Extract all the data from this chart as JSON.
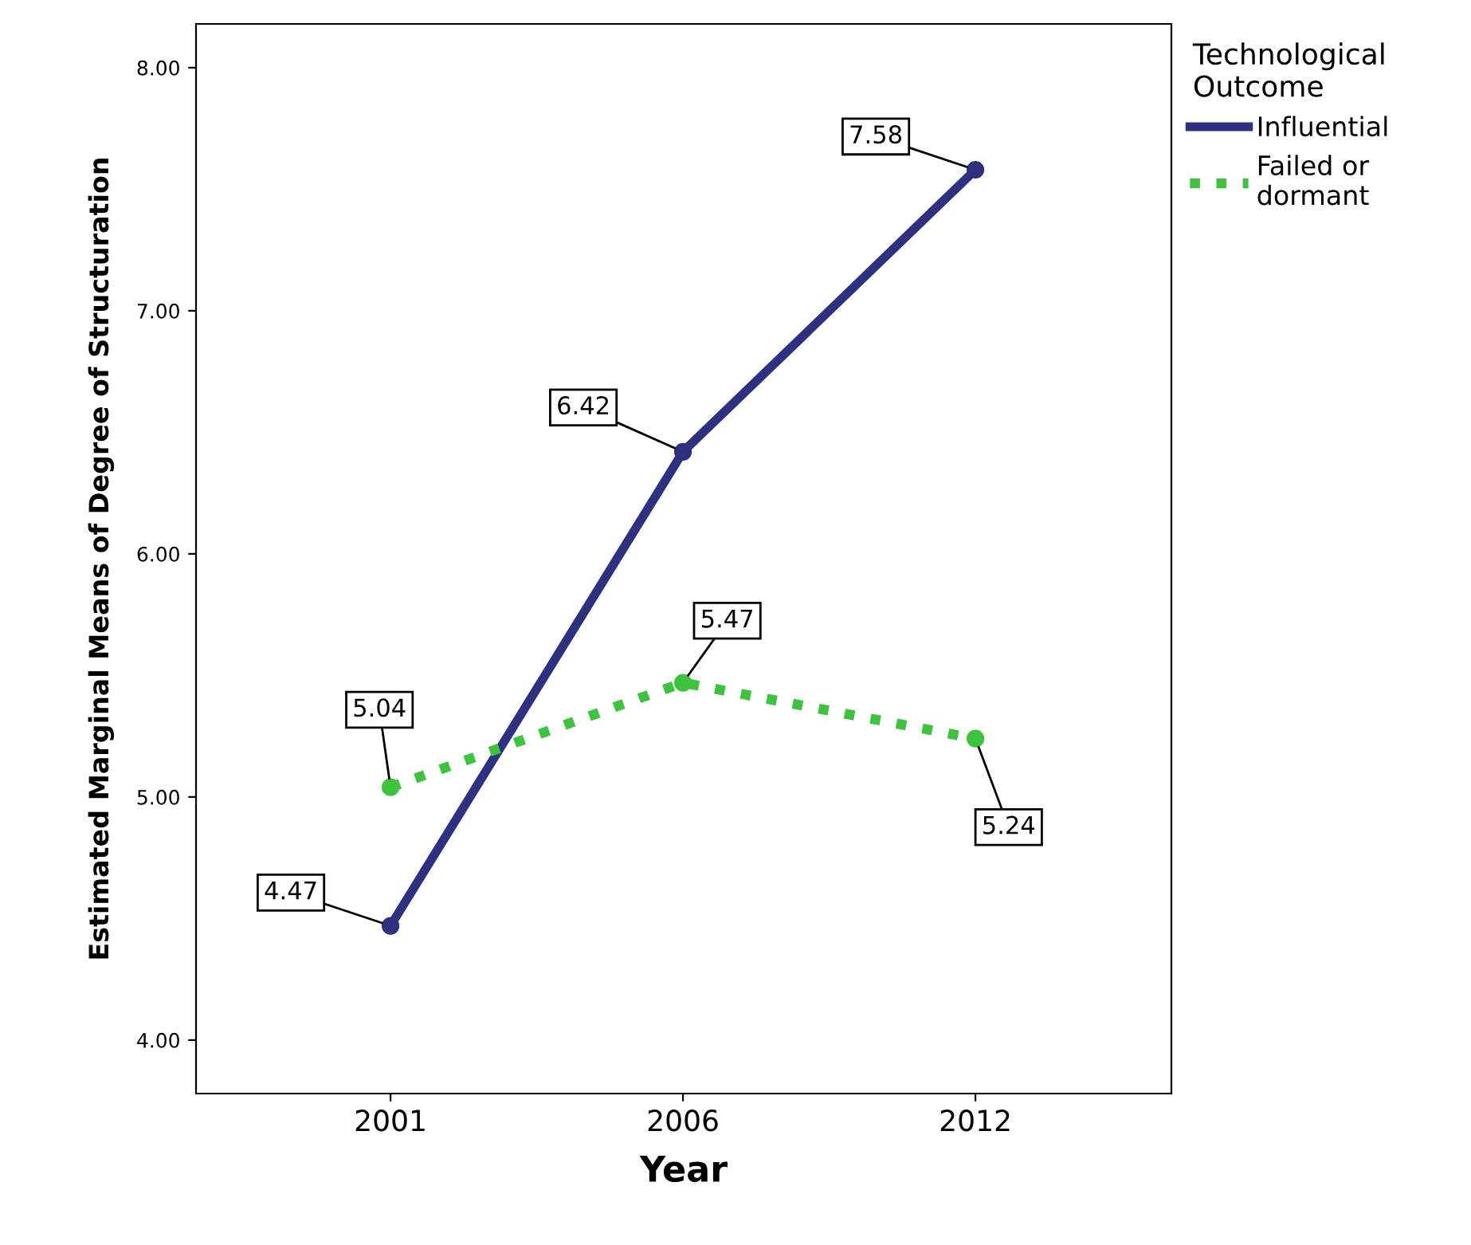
{
  "chart_data": {
    "type": "line",
    "xlabel": "Year",
    "ylabel": "Estimated Marginal Means of Degree of Structuration",
    "legend_title": "Technological Outcome",
    "categories": [
      "2001",
      "2006",
      "2012"
    ],
    "series": [
      {
        "name": "Influential",
        "color": "#2e3181",
        "values": [
          4.47,
          6.42,
          7.58
        ],
        "line_style": "solid"
      },
      {
        "name": "Failed or dormant",
        "color": "#3cc43c",
        "values": [
          5.04,
          5.47,
          5.24
        ],
        "line_style": "dotted"
      }
    ],
    "ylim": [
      3.78,
      8.18
    ],
    "yticks": [
      {
        "value": 4,
        "label": "4.00"
      },
      {
        "value": 5,
        "label": "5.00"
      },
      {
        "value": 6,
        "label": "6.00"
      },
      {
        "value": 7,
        "label": "7.00"
      },
      {
        "value": 8,
        "label": "8.00"
      }
    ],
    "data_labels": true,
    "marker": "circle",
    "grid": false,
    "legend": "top right"
  }
}
